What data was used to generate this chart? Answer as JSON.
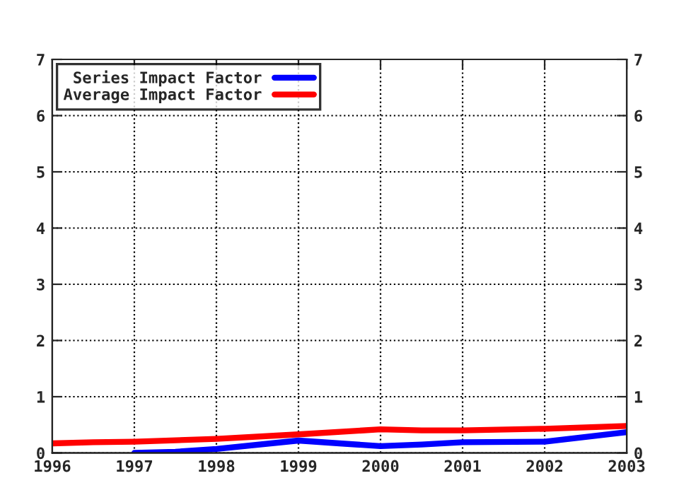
{
  "chart_data": {
    "type": "line",
    "series": [
      {
        "name": "Series Impact Factor",
        "color": "#0000ff",
        "x": [
          1997,
          1997.5,
          1998,
          1999,
          1999.5,
          2000,
          2000.5,
          2001,
          2002,
          2003
        ],
        "values": [
          0.0,
          0.02,
          0.07,
          0.22,
          0.17,
          0.12,
          0.15,
          0.19,
          0.2,
          0.37
        ]
      },
      {
        "name": "Average Impact Factor",
        "color": "#ff0000",
        "x": [
          1996,
          1996.5,
          1997,
          1998,
          1999,
          2000,
          2000.5,
          2001,
          2002,
          2003
        ],
        "values": [
          0.17,
          0.19,
          0.2,
          0.25,
          0.33,
          0.42,
          0.4,
          0.4,
          0.43,
          0.48
        ]
      }
    ],
    "xlim": [
      1996,
      2003
    ],
    "xticks": [
      1996,
      1997,
      1998,
      1999,
      2000,
      2001,
      2002,
      2003
    ],
    "ylim": [
      0,
      7
    ],
    "yticks": [
      0,
      1,
      2,
      3,
      4,
      5,
      6,
      7
    ],
    "y2lim": [
      0,
      7
    ],
    "y2ticks": [
      0,
      1,
      2,
      3,
      4,
      5,
      6,
      7
    ],
    "grid": true,
    "legend": "top left",
    "line_style": "solid",
    "marker": "none"
  }
}
